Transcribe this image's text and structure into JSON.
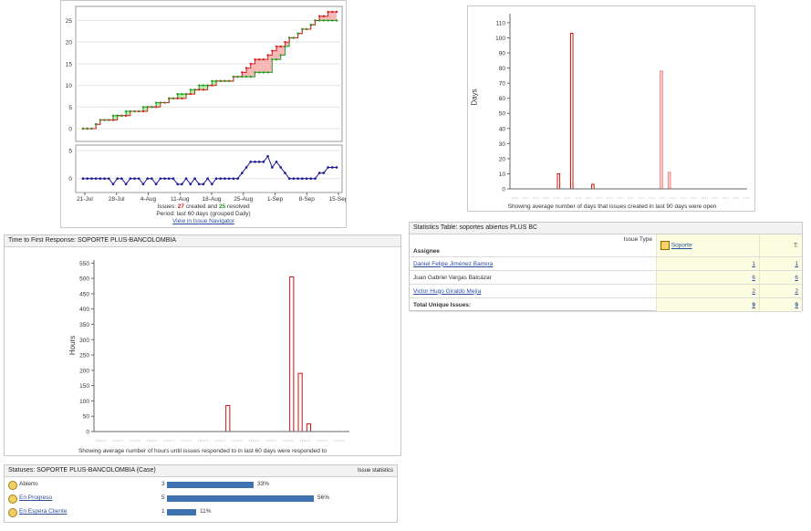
{
  "created_resolved": {
    "y_ticks": [
      "25",
      "20",
      "15",
      "10",
      "5",
      "0"
    ],
    "delta_ticks": [
      "5",
      "0"
    ],
    "x_ticks": [
      "21-Jul",
      "28-Jul",
      "4-Aug",
      "11-Aug",
      "18-Aug",
      "25-Aug",
      "1-Sep",
      "8-Sep",
      "15-Sep"
    ],
    "line1_prefix": "Issues: ",
    "created": "27",
    "line1_mid": " created and ",
    "resolved": "25",
    "line1_suffix": " resolved",
    "line2": "Period: last 60 days (grouped Daily)",
    "link": "View in Issue Navigator",
    "colors": {
      "created": "#d32020",
      "resolved": "#23a023",
      "delta": "#1a1a9a"
    }
  },
  "avg_age": {
    "ylabel": "Days",
    "y_ticks": [
      "110",
      "100",
      "90",
      "80",
      "70",
      "60",
      "50",
      "40",
      "30",
      "20",
      "10",
      "0"
    ],
    "caption": "Showing average number of days that issues created in last 90 days were open",
    "bars": [
      {
        "d": 18,
        "v": 10
      },
      {
        "d": 23,
        "v": 103
      },
      {
        "d": 31,
        "v": 3
      },
      {
        "d": 57,
        "v": 78
      },
      {
        "d": 60,
        "v": 11
      }
    ]
  },
  "first_response": {
    "title": "Time to First Response: SOPORTE PLUS-BANCOLOMBIA",
    "ylabel": "Hours",
    "y_ticks": [
      "550",
      "500",
      "450",
      "400",
      "350",
      "300",
      "250",
      "200",
      "150",
      "100",
      "50",
      "0"
    ],
    "caption": "Showing average number of hours until issues responded to in last 60 days were responded to",
    "bars": [
      {
        "d": 31,
        "v": 85
      },
      {
        "d": 46,
        "v": 505
      },
      {
        "d": 48,
        "v": 190
      },
      {
        "d": 50,
        "v": 25
      }
    ]
  },
  "stats_table": {
    "title": "Statistics Table: soportes abiertos PLUS BC",
    "issue_type_label": "Issue Type",
    "assignee_label": "Assignee",
    "col_soporte": "Soporte",
    "col_total": "T:",
    "rows": [
      {
        "name": "Daniel Felipe Jiménez Barrera",
        "soporte": "1",
        "total": "1",
        "linked": true
      },
      {
        "name": "Juan Gabriel Vargas Balcázar",
        "soporte": "6",
        "total": "6",
        "linked": false
      },
      {
        "name": "Victor Hugo Giraldo Mejía",
        "soporte": "2",
        "total": "2",
        "linked": true
      }
    ],
    "total_label": "Total Unique Issues:",
    "total_soporte": "9",
    "total_total": "9"
  },
  "statuses": {
    "title": "Statuses: SOPORTE PLUS-BANCOLOMBIA (Case)",
    "right_label": "Issue statistics",
    "rows": [
      {
        "name": "Abierto",
        "count": "3",
        "pct_label": "33%",
        "fraction": 0.33,
        "linked": false
      },
      {
        "name": "En Progreso",
        "count": "5",
        "pct_label": "56%",
        "fraction": 0.56,
        "linked": true
      },
      {
        "name": "En Espera Cliente",
        "count": "1",
        "pct_label": "11%",
        "fraction": 0.11,
        "linked": true
      }
    ]
  }
}
